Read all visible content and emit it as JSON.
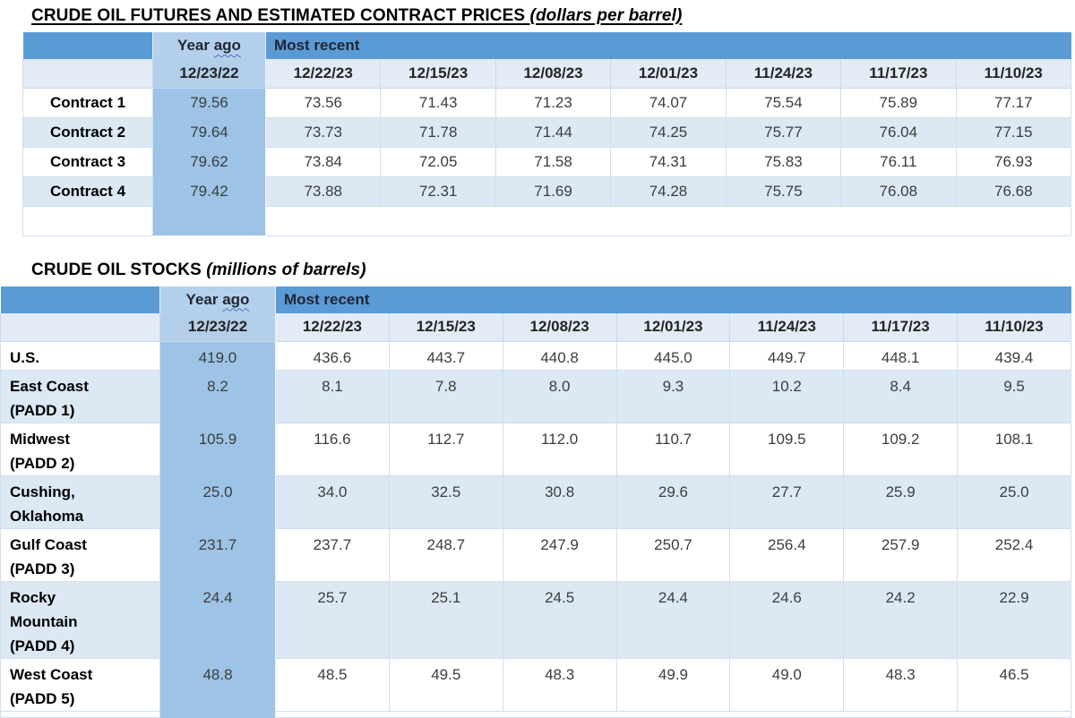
{
  "futures": {
    "title": "CRUDE OIL FUTURES AND ESTIMATED CONTRACT PRICES ",
    "title_unit": "(dollars per barrel)",
    "header": {
      "year_ago_word1": "Year ",
      "year_ago_word2": "ago",
      "most_recent": "Most recent"
    },
    "date_columns": [
      "12/23/22",
      "12/22/23",
      "12/15/23",
      "12/08/23",
      "12/01/23",
      "11/24/23",
      "11/17/23",
      "11/10/23"
    ],
    "rows": [
      {
        "label": "Contract 1",
        "values": [
          "79.56",
          "73.56",
          "71.43",
          "71.23",
          "74.07",
          "75.54",
          "75.89",
          "77.17"
        ]
      },
      {
        "label": "Contract 2",
        "values": [
          "79.64",
          "73.73",
          "71.78",
          "71.44",
          "74.25",
          "75.77",
          "76.04",
          "77.15"
        ]
      },
      {
        "label": "Contract 3",
        "values": [
          "79.62",
          "73.84",
          "72.05",
          "71.58",
          "74.31",
          "75.83",
          "76.11",
          "76.93"
        ]
      },
      {
        "label": "Contract 4",
        "values": [
          "79.42",
          "73.88",
          "72.31",
          "71.69",
          "74.28",
          "75.75",
          "76.08",
          "76.68"
        ]
      }
    ]
  },
  "stocks": {
    "title": "CRUDE OIL STOCKS ",
    "title_unit": "(millions of barrels)",
    "header": {
      "year_ago_word1": "Year ",
      "year_ago_word2": "ago",
      "most_recent": "Most recent"
    },
    "date_columns": [
      "12/23/22",
      "12/22/23",
      "12/15/23",
      "12/08/23",
      "12/01/23",
      "11/24/23",
      "11/17/23",
      "11/10/23"
    ],
    "rows": [
      {
        "label": "U.S.",
        "values": [
          "419.0",
          "436.6",
          "443.7",
          "440.8",
          "445.0",
          "449.7",
          "448.1",
          "439.4"
        ]
      },
      {
        "label": "East Coast\n(PADD 1)",
        "values": [
          "8.2",
          "8.1",
          "7.8",
          "8.0",
          "9.3",
          "10.2",
          "8.4",
          "9.5"
        ]
      },
      {
        "label": "Midwest\n(PADD 2)",
        "values": [
          "105.9",
          "116.6",
          "112.7",
          "112.0",
          "110.7",
          "109.5",
          "109.2",
          "108.1"
        ]
      },
      {
        "label": "Cushing,\nOklahoma",
        "values": [
          "25.0",
          "34.0",
          "32.5",
          "30.8",
          "29.6",
          "27.7",
          "25.9",
          "25.0"
        ]
      },
      {
        "label": "Gulf Coast\n(PADD 3)",
        "values": [
          "231.7",
          "237.7",
          "248.7",
          "247.9",
          "250.7",
          "256.4",
          "257.9",
          "252.4"
        ]
      },
      {
        "label": "Rocky\nMountain\n(PADD 4)",
        "values": [
          "24.4",
          "25.7",
          "25.1",
          "24.5",
          "24.4",
          "24.6",
          "24.2",
          "22.9"
        ]
      },
      {
        "label": "West Coast\n(PADD 5)",
        "values": [
          "48.8",
          "48.5",
          "49.5",
          "48.3",
          "49.9",
          "49.0",
          "48.3",
          "46.5"
        ]
      }
    ]
  },
  "colors": {
    "header_band": "#5b9bd5",
    "year_ago_header": "#b5d0ec",
    "year_ago_column": "#9dc3e6",
    "date_row": "#e2ebf6",
    "stripe_row": "#dce8f4",
    "squiggle": "#4472c4"
  }
}
